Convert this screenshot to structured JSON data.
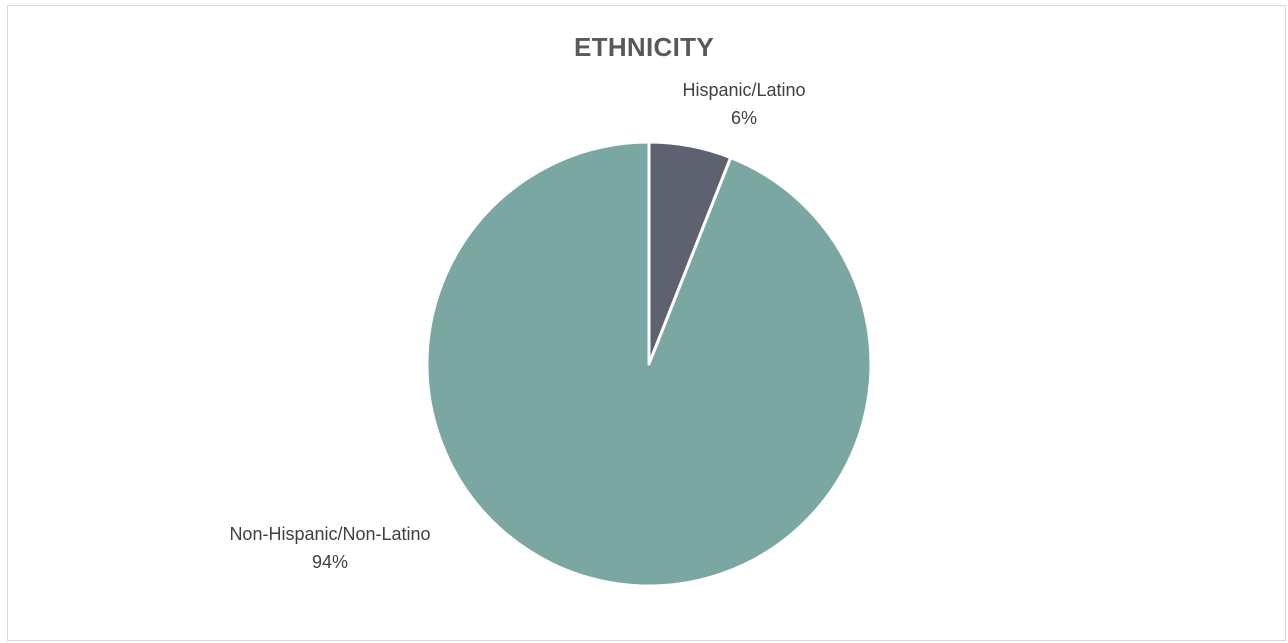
{
  "chart_data": {
    "type": "pie",
    "title": "ETHNICITY",
    "slices": [
      {
        "label": "Hispanic/Latino",
        "value": 6,
        "value_label": "6%",
        "color": "#5e6270"
      },
      {
        "label": "Non-Hispanic/Non-Latino",
        "value": 94,
        "value_label": "94%",
        "color": "#7ba7a3"
      }
    ],
    "start_angle": "12 o'clock",
    "direction": "clockwise",
    "legend": "none",
    "slice_border_color": "#ffffff"
  }
}
